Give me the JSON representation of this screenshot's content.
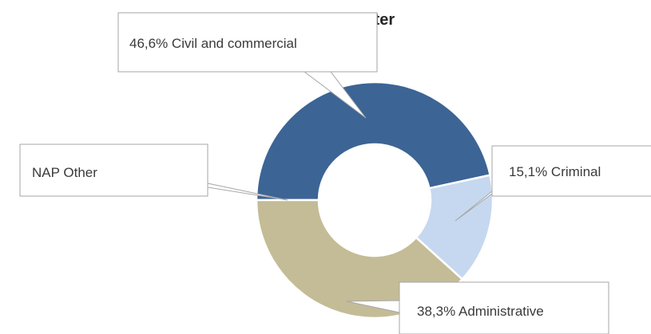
{
  "chart_data": {
    "type": "pie",
    "title_visible_fragment": "matter",
    "slices": [
      {
        "label": "Civil and commercial",
        "value": 46.6,
        "callout": "46,6% Civil and commercial",
        "color": "#3c6495"
      },
      {
        "label": "Criminal",
        "value": 15.1,
        "callout": "15,1% Criminal",
        "color": "#c6d8ef"
      },
      {
        "label": "Administrative",
        "value": 38.3,
        "callout": "38,3% Administrative",
        "color": "#c4bc96"
      },
      {
        "label": "NAP Other",
        "value": 0,
        "callout": "NAP Other",
        "color": "#7f7f7f"
      }
    ]
  }
}
